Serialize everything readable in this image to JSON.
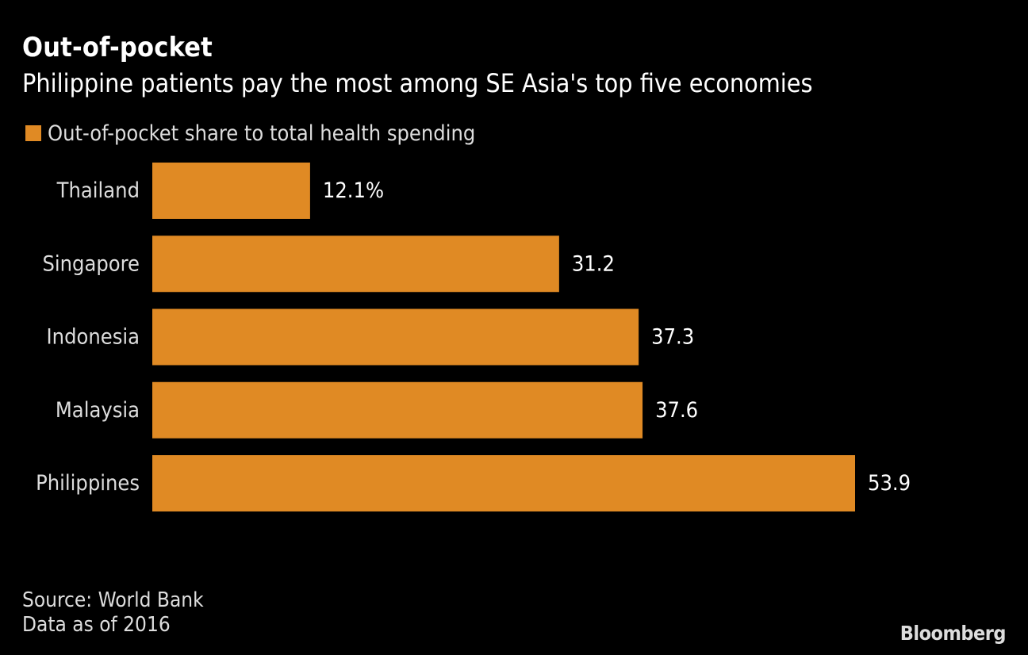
{
  "header": {
    "title": "Out-of-pocket",
    "subtitle": "Philippine patients pay the most among SE Asia's top five economies"
  },
  "footer": {
    "source": "Source: World Bank",
    "note": "Data as of 2016",
    "brand": "Bloomberg"
  },
  "colors": {
    "background": "#000000",
    "bar": "#e08a24",
    "text": "#ffffff",
    "muted_text": "#dddddd"
  },
  "chart_data": {
    "type": "bar",
    "orientation": "horizontal",
    "title": "Out-of-pocket",
    "subtitle": "Philippine patients pay the most among SE Asia's top five economies",
    "categories": [
      "Thailand",
      "Singapore",
      "Indonesia",
      "Malaysia",
      "Philippines"
    ],
    "series": [
      {
        "name": "Out-of-pocket share to total health spending",
        "values": [
          12.1,
          31.2,
          37.3,
          37.6,
          53.9
        ]
      }
    ],
    "value_labels": [
      "12.1%",
      "31.2",
      "37.3",
      "37.6",
      "53.9"
    ],
    "xlim": [
      0,
      53.9
    ],
    "grid": false,
    "legend_position": "top-left"
  }
}
